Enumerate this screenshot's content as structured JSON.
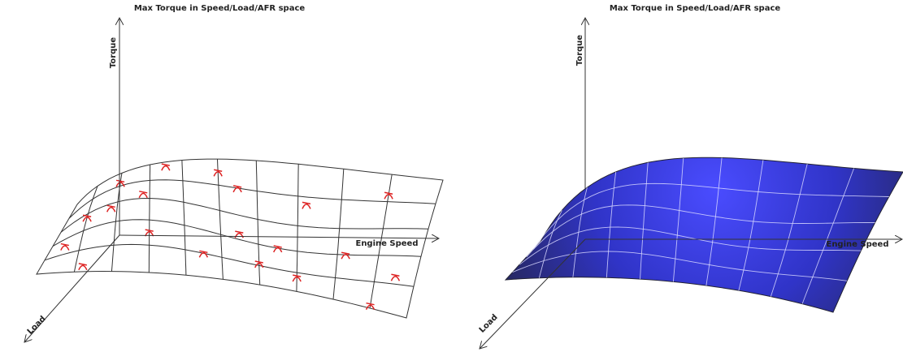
{
  "panels": [
    {
      "title": "Max Torque in Speed/Load/AFR space",
      "y_axis": "Torque",
      "x_axis": "Engine Speed",
      "z_axis": "Load"
    },
    {
      "title": "Max Torque in Speed/Load/AFR space",
      "y_axis": "Torque",
      "x_axis": "Engine Speed",
      "z_axis": "Load"
    }
  ]
}
